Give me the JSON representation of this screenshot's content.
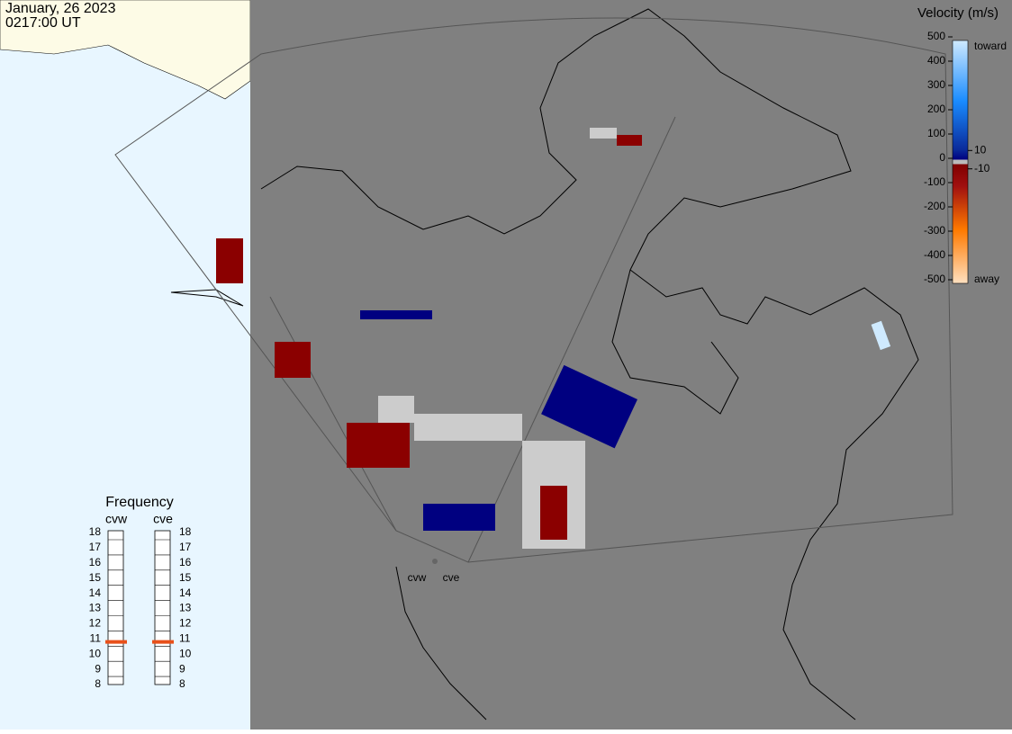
{
  "header": {
    "date": "January, 26 2023",
    "time": "0217:00 UT"
  },
  "velocity_scale": {
    "title": "Velocity (m/s)",
    "range": [
      -500,
      500
    ],
    "ticks": [
      500,
      400,
      300,
      200,
      100,
      0,
      -100,
      -200,
      -300,
      -400,
      -500
    ],
    "inner_ticks": [
      10,
      -10
    ],
    "toward": "toward",
    "away": "away"
  },
  "frequency": {
    "title": "Frequency",
    "range": [
      8,
      18
    ],
    "ticks": [
      18,
      17,
      16,
      15,
      14,
      13,
      12,
      11,
      10,
      9,
      8
    ],
    "radars": [
      {
        "name": "cvw",
        "value": 10.8
      },
      {
        "name": "cve",
        "value": 10.8
      }
    ]
  },
  "map": {
    "radar_labels": [
      "cvw",
      "cve"
    ]
  }
}
